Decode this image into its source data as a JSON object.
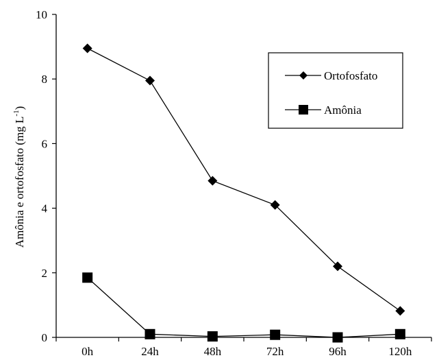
{
  "chart_data": {
    "type": "line",
    "categories": [
      "0h",
      "24h",
      "48h",
      "72h",
      "96h",
      "120h"
    ],
    "ylabel": "Amônia e ortofosfato (mg L",
    "ylabel_superscript": "-1",
    "ylabel_close": ")",
    "ylim": [
      0,
      10
    ],
    "yticks": [
      "0",
      "2",
      "4",
      "6",
      "8",
      "10"
    ],
    "grid": false,
    "legend_position": "top-right",
    "series": [
      {
        "name": "Ortofosfato",
        "marker": "diamond",
        "color": "#000000",
        "values": [
          8.95,
          7.95,
          4.85,
          4.1,
          2.2,
          0.82
        ]
      },
      {
        "name": "Amônia",
        "marker": "square",
        "color": "#000000",
        "values": [
          1.85,
          0.1,
          0.03,
          0.08,
          0.0,
          0.1
        ]
      }
    ]
  }
}
